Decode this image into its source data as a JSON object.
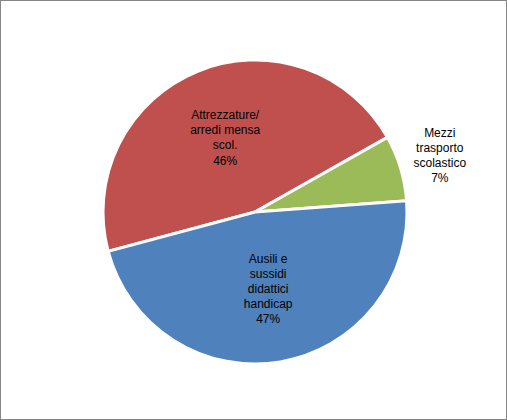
{
  "chart_data": {
    "type": "pie",
    "categories": [
      "Attrezzature/\narredi mensa\nscol.",
      "Mezzi\ntrasporto\nscolastico",
      "Ausili e\nsussidi\ndidattici\nhandicap"
    ],
    "values": [
      46,
      7,
      47
    ],
    "value_labels": [
      "46%",
      "7%",
      "47%"
    ],
    "colors": [
      "#c0504d",
      "#9bbb59",
      "#4f81bd"
    ],
    "data_labels": true
  }
}
